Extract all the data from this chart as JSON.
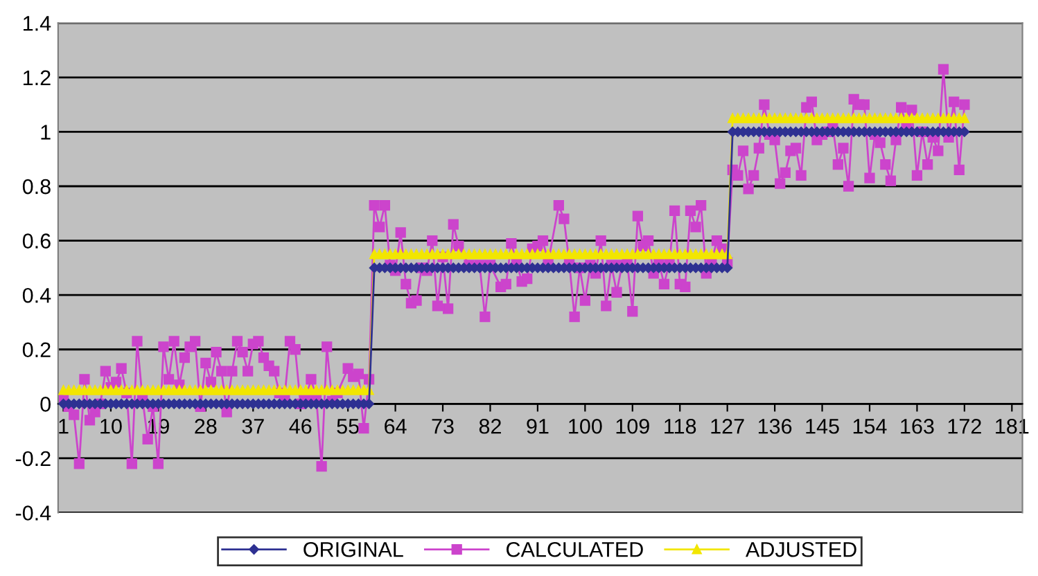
{
  "chart_data": {
    "type": "line",
    "x": [
      1,
      2,
      3,
      4,
      5,
      6,
      7,
      8,
      9,
      10,
      11,
      12,
      13,
      14,
      15,
      16,
      17,
      18,
      19,
      20,
      21,
      22,
      23,
      24,
      25,
      26,
      27,
      28,
      29,
      30,
      31,
      32,
      33,
      34,
      35,
      36,
      37,
      38,
      39,
      40,
      41,
      42,
      43,
      44,
      45,
      46,
      47,
      48,
      49,
      50,
      51,
      52,
      53,
      54,
      55,
      56,
      57,
      58,
      59,
      60,
      61,
      62,
      63,
      64,
      65,
      66,
      67,
      68,
      69,
      70,
      71,
      72,
      73,
      74,
      75,
      76,
      77,
      78,
      79,
      80,
      81,
      82,
      83,
      84,
      85,
      86,
      87,
      88,
      89,
      90,
      91,
      92,
      93,
      94,
      95,
      96,
      97,
      98,
      99,
      100,
      101,
      102,
      103,
      104,
      105,
      106,
      107,
      108,
      109,
      110,
      111,
      112,
      113,
      114,
      115,
      116,
      117,
      118,
      119,
      120,
      121,
      122,
      123,
      124,
      125,
      126,
      127,
      128,
      129,
      130,
      131,
      132,
      133,
      134,
      135,
      136,
      137,
      138,
      139,
      140,
      141,
      142,
      143,
      144,
      145,
      146,
      147,
      148,
      149,
      150,
      151,
      152,
      153,
      154,
      155,
      156,
      157,
      158,
      159,
      160,
      161,
      162,
      163,
      164,
      165,
      166,
      167,
      168,
      169,
      170,
      171,
      172
    ],
    "series": [
      {
        "name": "ORIGINAL",
        "color": "#2e3192",
        "marker": "diamond",
        "values": [
          0,
          0,
          0,
          0,
          0,
          0,
          0,
          0,
          0,
          0,
          0,
          0,
          0,
          0,
          0,
          0,
          0,
          0,
          0,
          0,
          0,
          0,
          0,
          0,
          0,
          0,
          0,
          0,
          0,
          0,
          0,
          0,
          0,
          0,
          0,
          0,
          0,
          0,
          0,
          0,
          0,
          0,
          0,
          0,
          0,
          0,
          0,
          0,
          0,
          0,
          0,
          0,
          0,
          0,
          0,
          0,
          0,
          0,
          0,
          0.5,
          0.5,
          0.5,
          0.5,
          0.5,
          0.5,
          0.5,
          0.5,
          0.5,
          0.5,
          0.5,
          0.5,
          0.5,
          0.5,
          0.5,
          0.5,
          0.5,
          0.5,
          0.5,
          0.5,
          0.5,
          0.5,
          0.5,
          0.5,
          0.5,
          0.5,
          0.5,
          0.5,
          0.5,
          0.5,
          0.5,
          0.5,
          0.5,
          0.5,
          0.5,
          0.5,
          0.5,
          0.5,
          0.5,
          0.5,
          0.5,
          0.5,
          0.5,
          0.5,
          0.5,
          0.5,
          0.5,
          0.5,
          0.5,
          0.5,
          0.5,
          0.5,
          0.5,
          0.5,
          0.5,
          0.5,
          0.5,
          0.5,
          0.5,
          0.5,
          0.5,
          0.5,
          0.5,
          0.5,
          0.5,
          0.5,
          0.5,
          0.5,
          1,
          1,
          1,
          1,
          1,
          1,
          1,
          1,
          1,
          1,
          1,
          1,
          1,
          1,
          1,
          1,
          1,
          1,
          1,
          1,
          1,
          1,
          1,
          1,
          1,
          1,
          1,
          1,
          1,
          1,
          1,
          1,
          1,
          1,
          1,
          1,
          1,
          1,
          1,
          1,
          1,
          1,
          1,
          1,
          1
        ]
      },
      {
        "name": "CALCULATED",
        "color": "#cc44cc",
        "marker": "square",
        "x": [
          1,
          2,
          3,
          4,
          5,
          6,
          7,
          8,
          9,
          10,
          11,
          12,
          13,
          14,
          15,
          16,
          17,
          18,
          19,
          20,
          21,
          22,
          23,
          24,
          25,
          26,
          27,
          28,
          29,
          30,
          31,
          32,
          33,
          34,
          35,
          36,
          37,
          38,
          39,
          40,
          41,
          42,
          43,
          44,
          45,
          46,
          47,
          48,
          49,
          50,
          51,
          52,
          53,
          55,
          56,
          57,
          58,
          59,
          60,
          61,
          62,
          63,
          64,
          65,
          66,
          67,
          68,
          69,
          70,
          71,
          72,
          73,
          74,
          75,
          76,
          78,
          80,
          81,
          82,
          84,
          85,
          86,
          87,
          88,
          89,
          90,
          91,
          92,
          93,
          95,
          96,
          97,
          98,
          99,
          100,
          101,
          102,
          103,
          104,
          105,
          106,
          107,
          108,
          109,
          110,
          111,
          112,
          113,
          114,
          115,
          116,
          117,
          118,
          119,
          120,
          121,
          122,
          123,
          124,
          125,
          126,
          127,
          128,
          129,
          130,
          131,
          132,
          133,
          134,
          135,
          136,
          137,
          138,
          139,
          140,
          141,
          142,
          143,
          144,
          145,
          146,
          147,
          148,
          149,
          150,
          151,
          152,
          153,
          154,
          155,
          156,
          157,
          158,
          159,
          160,
          161,
          162,
          163,
          164,
          165,
          166,
          167,
          168,
          169,
          170,
          171,
          172
        ],
        "values": [
          0.02,
          -0.01,
          -0.04,
          -0.22,
          0.09,
          -0.06,
          -0.03,
          0,
          0.12,
          0.06,
          0.08,
          0.13,
          0.04,
          -0.22,
          0.23,
          0.02,
          -0.13,
          -0.01,
          -0.22,
          0.21,
          0.09,
          0.23,
          0.07,
          0.17,
          0.21,
          0.23,
          -0.01,
          0.15,
          0.08,
          0.19,
          0.12,
          -0.03,
          0.12,
          0.23,
          0.19,
          0.12,
          0.22,
          0.23,
          0.17,
          0.14,
          0.12,
          0.04,
          0.03,
          0.23,
          0.2,
          0,
          0.02,
          0.09,
          0.02,
          -0.23,
          0.21,
          0.01,
          0.04,
          0.13,
          0.1,
          0.11,
          -0.09,
          0.09,
          0.73,
          0.65,
          0.73,
          0.51,
          0.49,
          0.63,
          0.44,
          0.37,
          0.38,
          0.5,
          0.49,
          0.6,
          0.36,
          0.54,
          0.35,
          0.66,
          0.58,
          0.51,
          0.51,
          0.32,
          0.51,
          0.43,
          0.44,
          0.59,
          0.52,
          0.45,
          0.46,
          0.57,
          0.58,
          0.6,
          0.52,
          0.73,
          0.68,
          0.52,
          0.32,
          0.5,
          0.38,
          0.51,
          0.48,
          0.6,
          0.36,
          0.51,
          0.41,
          0.51,
          0.52,
          0.34,
          0.69,
          0.58,
          0.6,
          0.48,
          0.52,
          0.44,
          0.52,
          0.71,
          0.44,
          0.43,
          0.71,
          0.65,
          0.73,
          0.48,
          0.52,
          0.6,
          0.57,
          0.52,
          0.86,
          0.84,
          0.93,
          0.79,
          0.84,
          0.94,
          1.1,
          0.99,
          0.97,
          0.81,
          0.85,
          0.93,
          0.94,
          0.84,
          1.09,
          1.11,
          0.97,
          0.99,
          1,
          1.02,
          0.88,
          0.94,
          0.8,
          1.12,
          1.1,
          1.1,
          0.83,
          0.99,
          0.96,
          0.88,
          0.82,
          0.97,
          1.09,
          1.02,
          1.08,
          0.84,
          1,
          0.88,
          0.98,
          0.93,
          1.23,
          0.98,
          1.11,
          0.86,
          1.1
        ]
      },
      {
        "name": "ADJUSTED",
        "color": "#f2e600",
        "marker": "triangle",
        "values": [
          0.05,
          0.05,
          0.05,
          0.05,
          0.05,
          0.05,
          0.05,
          0.05,
          0.05,
          0.05,
          0.05,
          0.05,
          0.05,
          0.05,
          0.05,
          0.05,
          0.05,
          0.05,
          0.05,
          0.05,
          0.05,
          0.05,
          0.05,
          0.05,
          0.05,
          0.05,
          0.05,
          0.05,
          0.05,
          0.05,
          0.05,
          0.05,
          0.05,
          0.05,
          0.05,
          0.05,
          0.05,
          0.05,
          0.05,
          0.05,
          0.05,
          0.05,
          0.05,
          0.05,
          0.05,
          0.05,
          0.05,
          0.05,
          0.05,
          0.05,
          0.05,
          0.05,
          0.05,
          0.05,
          0.05,
          0.05,
          0.05,
          0.05,
          0.05,
          0.55,
          0.55,
          0.55,
          0.55,
          0.55,
          0.55,
          0.55,
          0.55,
          0.55,
          0.55,
          0.55,
          0.55,
          0.55,
          0.55,
          0.55,
          0.55,
          0.55,
          0.55,
          0.55,
          0.55,
          0.55,
          0.55,
          0.55,
          0.55,
          0.55,
          0.55,
          0.55,
          0.55,
          0.55,
          0.55,
          0.55,
          0.55,
          0.55,
          0.55,
          0.55,
          0.55,
          0.55,
          0.55,
          0.55,
          0.55,
          0.55,
          0.55,
          0.55,
          0.55,
          0.55,
          0.55,
          0.55,
          0.55,
          0.55,
          0.55,
          0.55,
          0.55,
          0.55,
          0.55,
          0.55,
          0.55,
          0.55,
          0.55,
          0.55,
          0.55,
          0.55,
          0.55,
          0.55,
          0.55,
          0.55,
          0.55,
          0.55,
          0.55,
          1.05,
          1.05,
          1.05,
          1.05,
          1.05,
          1.05,
          1.05,
          1.05,
          1.05,
          1.05,
          1.05,
          1.05,
          1.05,
          1.05,
          1.05,
          1.05,
          1.05,
          1.05,
          1.05,
          1.05,
          1.05,
          1.05,
          1.05,
          1.05,
          1.05,
          1.05,
          1.05,
          1.05,
          1.05,
          1.05,
          1.05,
          1.05,
          1.05,
          1.05,
          1.05,
          1.05,
          1.05,
          1.05,
          1.05,
          1.05,
          1.05,
          1.05,
          1.05,
          1.05,
          1.05
        ]
      }
    ],
    "xlim": [
      0,
      183
    ],
    "xticks": [
      1,
      10,
      19,
      28,
      37,
      46,
      55,
      64,
      73,
      82,
      91,
      100,
      109,
      118,
      127,
      136,
      145,
      154,
      163,
      172,
      181
    ],
    "ylim": [
      -0.4,
      1.4
    ],
    "yticks": [
      {
        "value": -0.4,
        "label": "-0.4"
      },
      {
        "value": -0.2,
        "label": "-0.2"
      },
      0,
      {
        "value": 0.2,
        "label": "0.2"
      },
      {
        "value": 0.4,
        "label": "0.4"
      },
      {
        "value": 0.6,
        "label": "0.6"
      },
      {
        "value": 0.8,
        "label": "0.8"
      },
      1,
      {
        "value": 1.2,
        "label": "1.2"
      },
      {
        "value": 1.4,
        "label": "1.4"
      }
    ],
    "grid": "y",
    "legend": "bottom",
    "line_style": "solid"
  }
}
